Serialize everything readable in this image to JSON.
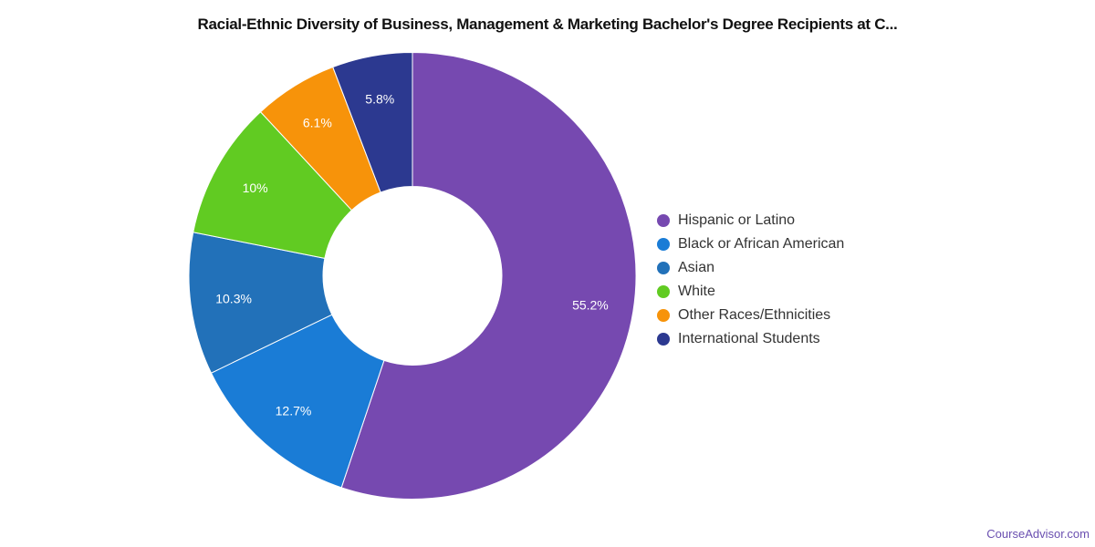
{
  "chart_data": {
    "type": "pie",
    "title": "Racial-Ethnic Diversity of Business, Management & Marketing Bachelor's Degree Recipients at C...",
    "donut": true,
    "legend_position": "right",
    "slices": [
      {
        "label": "Hispanic or Latino",
        "value": 55.2,
        "display": "55.2%",
        "color": "#7649b0"
      },
      {
        "label": "Black or African American",
        "value": 12.7,
        "display": "12.7%",
        "color": "#1a7cd6"
      },
      {
        "label": "Asian",
        "value": 10.3,
        "display": "10.3%",
        "color": "#2271b9"
      },
      {
        "label": "White",
        "value": 10,
        "display": "10%",
        "color": "#61cb22"
      },
      {
        "label": "Other Races/Ethnicities",
        "value": 6.1,
        "display": "6.1%",
        "color": "#f7930a"
      },
      {
        "label": "International Students",
        "value": 5.8,
        "display": "5.8%",
        "color": "#2c3990"
      }
    ]
  },
  "watermark": "CourseAdvisor.com"
}
